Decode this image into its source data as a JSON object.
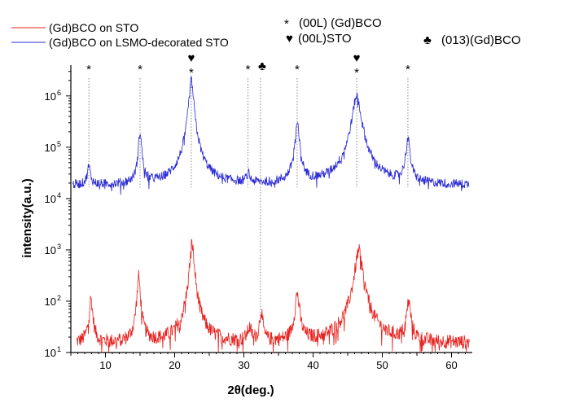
{
  "chart_data": {
    "type": "line",
    "title": "",
    "xlabel": "2θ(deg.)",
    "ylabel": "intensity(a.u.)",
    "xlim": [
      5,
      63
    ],
    "ylim_log10": [
      1,
      6.6
    ],
    "x_ticks": [
      10,
      20,
      30,
      40,
      50,
      60
    ],
    "y_ticks": [
      {
        "label": "10",
        "exp": "1",
        "value": 10
      },
      {
        "label": "10",
        "exp": "2",
        "value": 100
      },
      {
        "label": "10",
        "exp": "3",
        "value": 1000
      },
      {
        "label": "10",
        "exp": "4",
        "value": 10000
      },
      {
        "label": "10",
        "exp": "5",
        "value": 100000
      },
      {
        "label": "10",
        "exp": "6",
        "value": 1000000
      }
    ],
    "grid": false,
    "legend_position": "top-left",
    "series": [
      {
        "name": "(Gd)BCO on STO",
        "color": "#e8211d",
        "baseline": 15,
        "noise_log10": 0.14,
        "peaks": [
          {
            "x": 7.9,
            "y": 110,
            "w": 0.25
          },
          {
            "x": 14.8,
            "y": 300,
            "w": 0.22
          },
          {
            "x": 22.5,
            "y": 1350,
            "w": 0.28
          },
          {
            "x": 30.8,
            "y": 28,
            "w": 0.35
          },
          {
            "x": 32.5,
            "y": 65,
            "w": 0.22
          },
          {
            "x": 37.7,
            "y": 140,
            "w": 0.3
          },
          {
            "x": 46.6,
            "y": 950,
            "w": 0.5
          },
          {
            "x": 53.8,
            "y": 95,
            "w": 0.3
          }
        ]
      },
      {
        "name": "(Gd)BCO on LSMO-decorated  STO",
        "color": "#2a2ad4",
        "baseline": 18000,
        "noise_log10": 0.09,
        "peaks": [
          {
            "x": 7.6,
            "y": 42000,
            "w": 0.25
          },
          {
            "x": 15.0,
            "y": 200000,
            "w": 0.22
          },
          {
            "x": 22.4,
            "y": 2000000,
            "w": 0.3
          },
          {
            "x": 30.6,
            "y": 28000,
            "w": 0.3
          },
          {
            "x": 37.7,
            "y": 280000,
            "w": 0.3
          },
          {
            "x": 46.3,
            "y": 1000000,
            "w": 0.55
          },
          {
            "x": 53.7,
            "y": 140000,
            "w": 0.3
          }
        ]
      }
    ],
    "markers": [
      {
        "x": 7.6,
        "symbol": "*",
        "kind": "00L-GdBCO"
      },
      {
        "x": 15.0,
        "symbol": "*",
        "kind": "00L-GdBCO"
      },
      {
        "x": 22.4,
        "symbol": "♥*",
        "kind": "00L-STO+00L-GdBCO"
      },
      {
        "x": 30.6,
        "symbol": "*",
        "kind": "00L-GdBCO"
      },
      {
        "x": 32.4,
        "symbol": "♣",
        "kind": "013-GdBCO"
      },
      {
        "x": 37.7,
        "symbol": "*",
        "kind": "00L-GdBCO"
      },
      {
        "x": 46.3,
        "symbol": "♥*",
        "kind": "00L-STO+00L-GdBCO"
      },
      {
        "x": 53.7,
        "symbol": "*",
        "kind": "00L-GdBCO"
      }
    ],
    "annotations": {
      "star_symbol": "*",
      "star_label": "(00L) (Gd)BCO",
      "heart_symbol": "♥",
      "heart_label": "(00L)STO",
      "club_symbol": "♣",
      "club_label": "(013)(Gd)BCO"
    }
  }
}
